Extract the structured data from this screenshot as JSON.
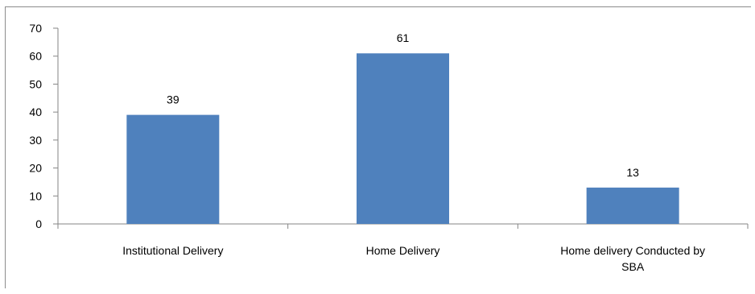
{
  "chart_data": {
    "type": "bar",
    "categories": [
      [
        "Institutional Delivery"
      ],
      [
        "Home Delivery"
      ],
      [
        "Home delivery Conducted by",
        "SBA"
      ]
    ],
    "values": [
      39,
      61,
      13
    ],
    "data_labels": [
      "39",
      "61",
      "13"
    ],
    "y_ticks": [
      "0",
      "10",
      "20",
      "30",
      "40",
      "50",
      "60",
      "70"
    ],
    "ylim": [
      0,
      70
    ],
    "title": "",
    "xlabel": "",
    "ylabel": "",
    "legend": "none",
    "grid": false,
    "bar_color": "#4f81bd"
  }
}
